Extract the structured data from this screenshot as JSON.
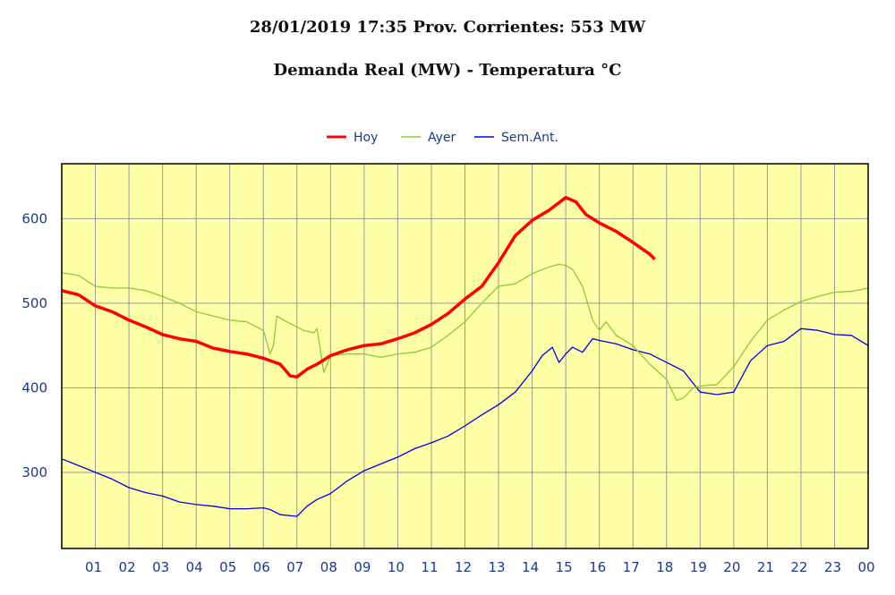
{
  "chart_data": {
    "type": "line",
    "title": "28/01/2019 17:35 Prov. Corrientes: 553 MW",
    "subtitle": "Demanda Real (MW) - Temperatura °C",
    "xlabel": "",
    "ylabel": "",
    "x_ticks": [
      "01",
      "02",
      "03",
      "04",
      "05",
      "06",
      "07",
      "08",
      "09",
      "10",
      "11",
      "12",
      "13",
      "14",
      "15",
      "16",
      "17",
      "18",
      "19",
      "20",
      "21",
      "22",
      "23",
      "00"
    ],
    "y_ticks": [
      300,
      400,
      500,
      600
    ],
    "xlim": [
      0,
      24
    ],
    "ylim": [
      210,
      665
    ],
    "grid": true,
    "legend_position": "top-center",
    "background_color": "#ffffa8",
    "series": [
      {
        "name": "Hoy",
        "color": "#ff0000",
        "x": [
          0,
          0.5,
          1,
          1.5,
          2,
          2.5,
          3,
          3.5,
          4,
          4.5,
          5,
          5.5,
          6,
          6.5,
          6.8,
          7,
          7.3,
          7.6,
          8,
          8.5,
          9,
          9.5,
          10,
          10.5,
          11,
          11.5,
          12,
          12.5,
          13,
          13.5,
          14,
          14.5,
          15,
          15.3,
          15.6,
          16,
          16.5,
          17,
          17.5,
          17.65
        ],
        "y": [
          515,
          510,
          497,
          490,
          480,
          472,
          463,
          458,
          455,
          447,
          443,
          440,
          435,
          428,
          414,
          413,
          422,
          428,
          438,
          445,
          450,
          452,
          458,
          465,
          475,
          488,
          505,
          520,
          548,
          580,
          598,
          610,
          625,
          620,
          605,
          595,
          585,
          572,
          558,
          552
        ]
      },
      {
        "name": "Ayer",
        "color": "#88cc33",
        "x": [
          0,
          0.5,
          1,
          1.5,
          2,
          2.5,
          3,
          3.5,
          4,
          4.5,
          5,
          5.5,
          6,
          6.2,
          6.3,
          6.4,
          6.6,
          7,
          7.2,
          7.5,
          7.6,
          7.8,
          8,
          8.5,
          9,
          9.5,
          10,
          10.5,
          11,
          11.5,
          12,
          12.5,
          13,
          13.5,
          14,
          14.5,
          14.8,
          15,
          15.2,
          15.5,
          15.8,
          16,
          16.2,
          16.5,
          17,
          17.5,
          18,
          18.3,
          18.5,
          18.8,
          19,
          19.5,
          20,
          20.5,
          21,
          21.5,
          22,
          22.5,
          23,
          23.5,
          24
        ],
        "y": [
          536,
          533,
          520,
          518,
          518,
          515,
          508,
          500,
          490,
          485,
          480,
          478,
          468,
          440,
          450,
          485,
          480,
          472,
          468,
          465,
          470,
          418,
          438,
          440,
          440,
          436,
          440,
          442,
          448,
          462,
          478,
          500,
          520,
          523,
          535,
          543,
          546,
          545,
          540,
          520,
          480,
          468,
          478,
          462,
          450,
          428,
          410,
          385,
          388,
          400,
          402,
          404,
          425,
          455,
          480,
          492,
          502,
          508,
          513,
          514,
          518
        ]
      },
      {
        "name": "Sem.Ant.",
        "color": "#0000ee",
        "x": [
          0,
          0.5,
          1,
          1.5,
          2,
          2.5,
          3,
          3.5,
          4,
          4.5,
          5,
          5.5,
          6,
          6.2,
          6.5,
          7,
          7.3,
          7.6,
          8,
          8.5,
          9,
          9.5,
          10,
          10.5,
          11,
          11.5,
          12,
          12.5,
          13,
          13.5,
          14,
          14.3,
          14.6,
          14.8,
          15,
          15.2,
          15.5,
          15.8,
          16,
          16.5,
          17,
          17.5,
          18,
          18.5,
          19,
          19.5,
          20,
          20.5,
          21,
          21.5,
          22,
          22.5,
          23,
          23.5,
          24
        ],
        "y": [
          316,
          308,
          300,
          292,
          282,
          276,
          272,
          265,
          262,
          260,
          257,
          257,
          258,
          256,
          250,
          248,
          260,
          268,
          275,
          290,
          302,
          310,
          318,
          328,
          335,
          343,
          355,
          368,
          380,
          395,
          420,
          438,
          448,
          430,
          440,
          448,
          442,
          458,
          456,
          452,
          445,
          440,
          430,
          420,
          395,
          392,
          395,
          432,
          450,
          455,
          470,
          468,
          463,
          462,
          450
        ]
      }
    ]
  }
}
